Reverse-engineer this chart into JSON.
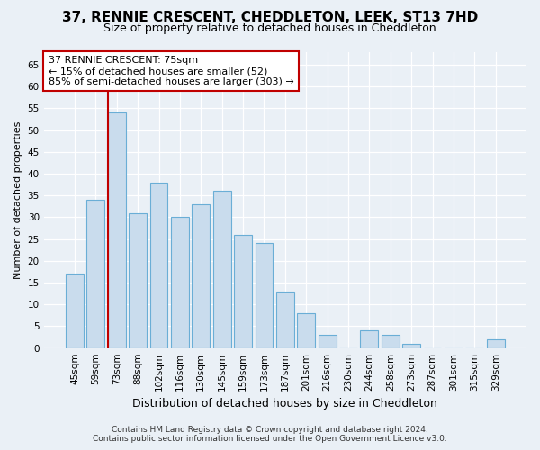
{
  "title_line1": "37, RENNIE CRESCENT, CHEDDLETON, LEEK, ST13 7HD",
  "title_line2": "Size of property relative to detached houses in Cheddleton",
  "xlabel": "Distribution of detached houses by size in Cheddleton",
  "ylabel": "Number of detached properties",
  "categories": [
    "45sqm",
    "59sqm",
    "73sqm",
    "88sqm",
    "102sqm",
    "116sqm",
    "130sqm",
    "145sqm",
    "159sqm",
    "173sqm",
    "187sqm",
    "201sqm",
    "216sqm",
    "230sqm",
    "244sqm",
    "258sqm",
    "273sqm",
    "287sqm",
    "301sqm",
    "315sqm",
    "329sqm"
  ],
  "values": [
    17,
    34,
    54,
    31,
    38,
    30,
    33,
    36,
    26,
    24,
    13,
    8,
    3,
    0,
    4,
    3,
    1,
    0,
    0,
    0,
    2
  ],
  "bar_color": "#c9dced",
  "bar_edge_color": "#6aaed6",
  "highlight_line_index": 2,
  "highlight_color": "#c00000",
  "annotation_line1": "37 RENNIE CRESCENT: 75sqm",
  "annotation_line2": "← 15% of detached houses are smaller (52)",
  "annotation_line3": "85% of semi-detached houses are larger (303) →",
  "annotation_box_fc": "#ffffff",
  "annotation_box_ec": "#c00000",
  "ylim": [
    0,
    68
  ],
  "yticks": [
    0,
    5,
    10,
    15,
    20,
    25,
    30,
    35,
    40,
    45,
    50,
    55,
    60,
    65
  ],
  "footer_line1": "Contains HM Land Registry data © Crown copyright and database right 2024.",
  "footer_line2": "Contains public sector information licensed under the Open Government Licence v3.0.",
  "bg_color": "#eaf0f6",
  "title1_fontsize": 11,
  "title2_fontsize": 9,
  "ylabel_fontsize": 8,
  "xlabel_fontsize": 9,
  "tick_fontsize": 7.5,
  "annot_fontsize": 8,
  "footer_fontsize": 6.5
}
